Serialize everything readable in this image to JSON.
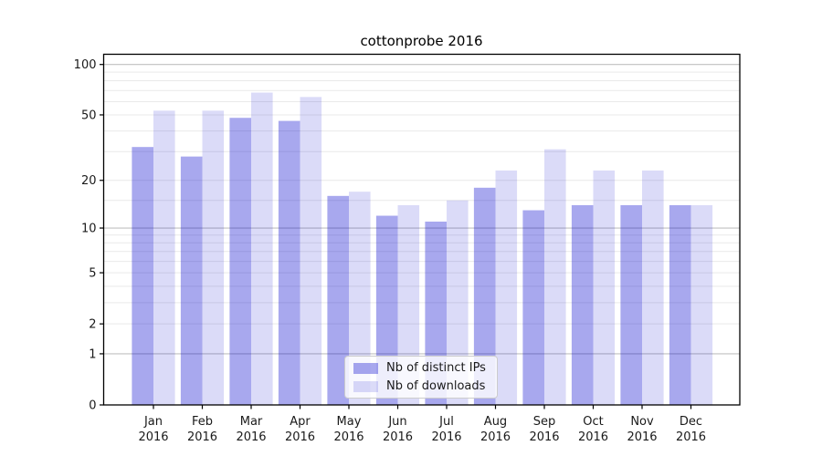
{
  "figure": {
    "title": "cottonprobe 2016"
  },
  "legend": {
    "items": [
      {
        "label": "Nb of distinct IPs",
        "series": "distinct_ips"
      },
      {
        "label": "Nb of downloads",
        "series": "downloads"
      }
    ]
  },
  "colors": {
    "bar_rgb": "0,0,205",
    "distinct_ips_alpha": 0.34,
    "downloads_alpha": 0.14,
    "grid_major_dark": "#c0c0c0",
    "grid_minor": "#e9e9e9",
    "spine": "#000000",
    "tick_text": "#1a1a1a",
    "legend_bg": "rgba(255,255,255,0.8)",
    "legend_border": "#cccccc"
  },
  "y_axis": {
    "tick_labels": [
      "100",
      "50",
      "20",
      "10",
      "5",
      "2",
      "1",
      "0"
    ]
  },
  "x_axis": {
    "year_line": "2016"
  },
  "chart_data": {
    "type": "bar",
    "title": "cottonprobe 2016",
    "categories": [
      "Jan 2016",
      "Feb 2016",
      "Mar 2016",
      "Apr 2016",
      "May 2016",
      "Jun 2016",
      "Jul 2016",
      "Aug 2016",
      "Sep 2016",
      "Oct 2016",
      "Nov 2016",
      "Dec 2016"
    ],
    "series": [
      {
        "name": "Nb of distinct IPs",
        "values": [
          32,
          28,
          48,
          46,
          16,
          12,
          11,
          18,
          13,
          14,
          14,
          14
        ]
      },
      {
        "name": "Nb of downloads",
        "values": [
          53,
          53,
          68,
          64,
          17,
          14,
          15,
          23,
          31,
          23,
          23,
          14
        ]
      }
    ],
    "yscale": "log1p",
    "ylim": [
      0,
      115
    ],
    "yticks": [
      0,
      1,
      2,
      5,
      10,
      20,
      50,
      100
    ],
    "minor_yticks": [
      3,
      4,
      6,
      7,
      8,
      9,
      15,
      30,
      40,
      60,
      70,
      80,
      90
    ],
    "dark_grid_at": [
      1,
      10,
      100
    ],
    "light_grid_at": [
      2,
      5,
      20,
      50
    ],
    "grid": true,
    "legend_position": "lower center",
    "xlabel": "",
    "ylabel": ""
  }
}
